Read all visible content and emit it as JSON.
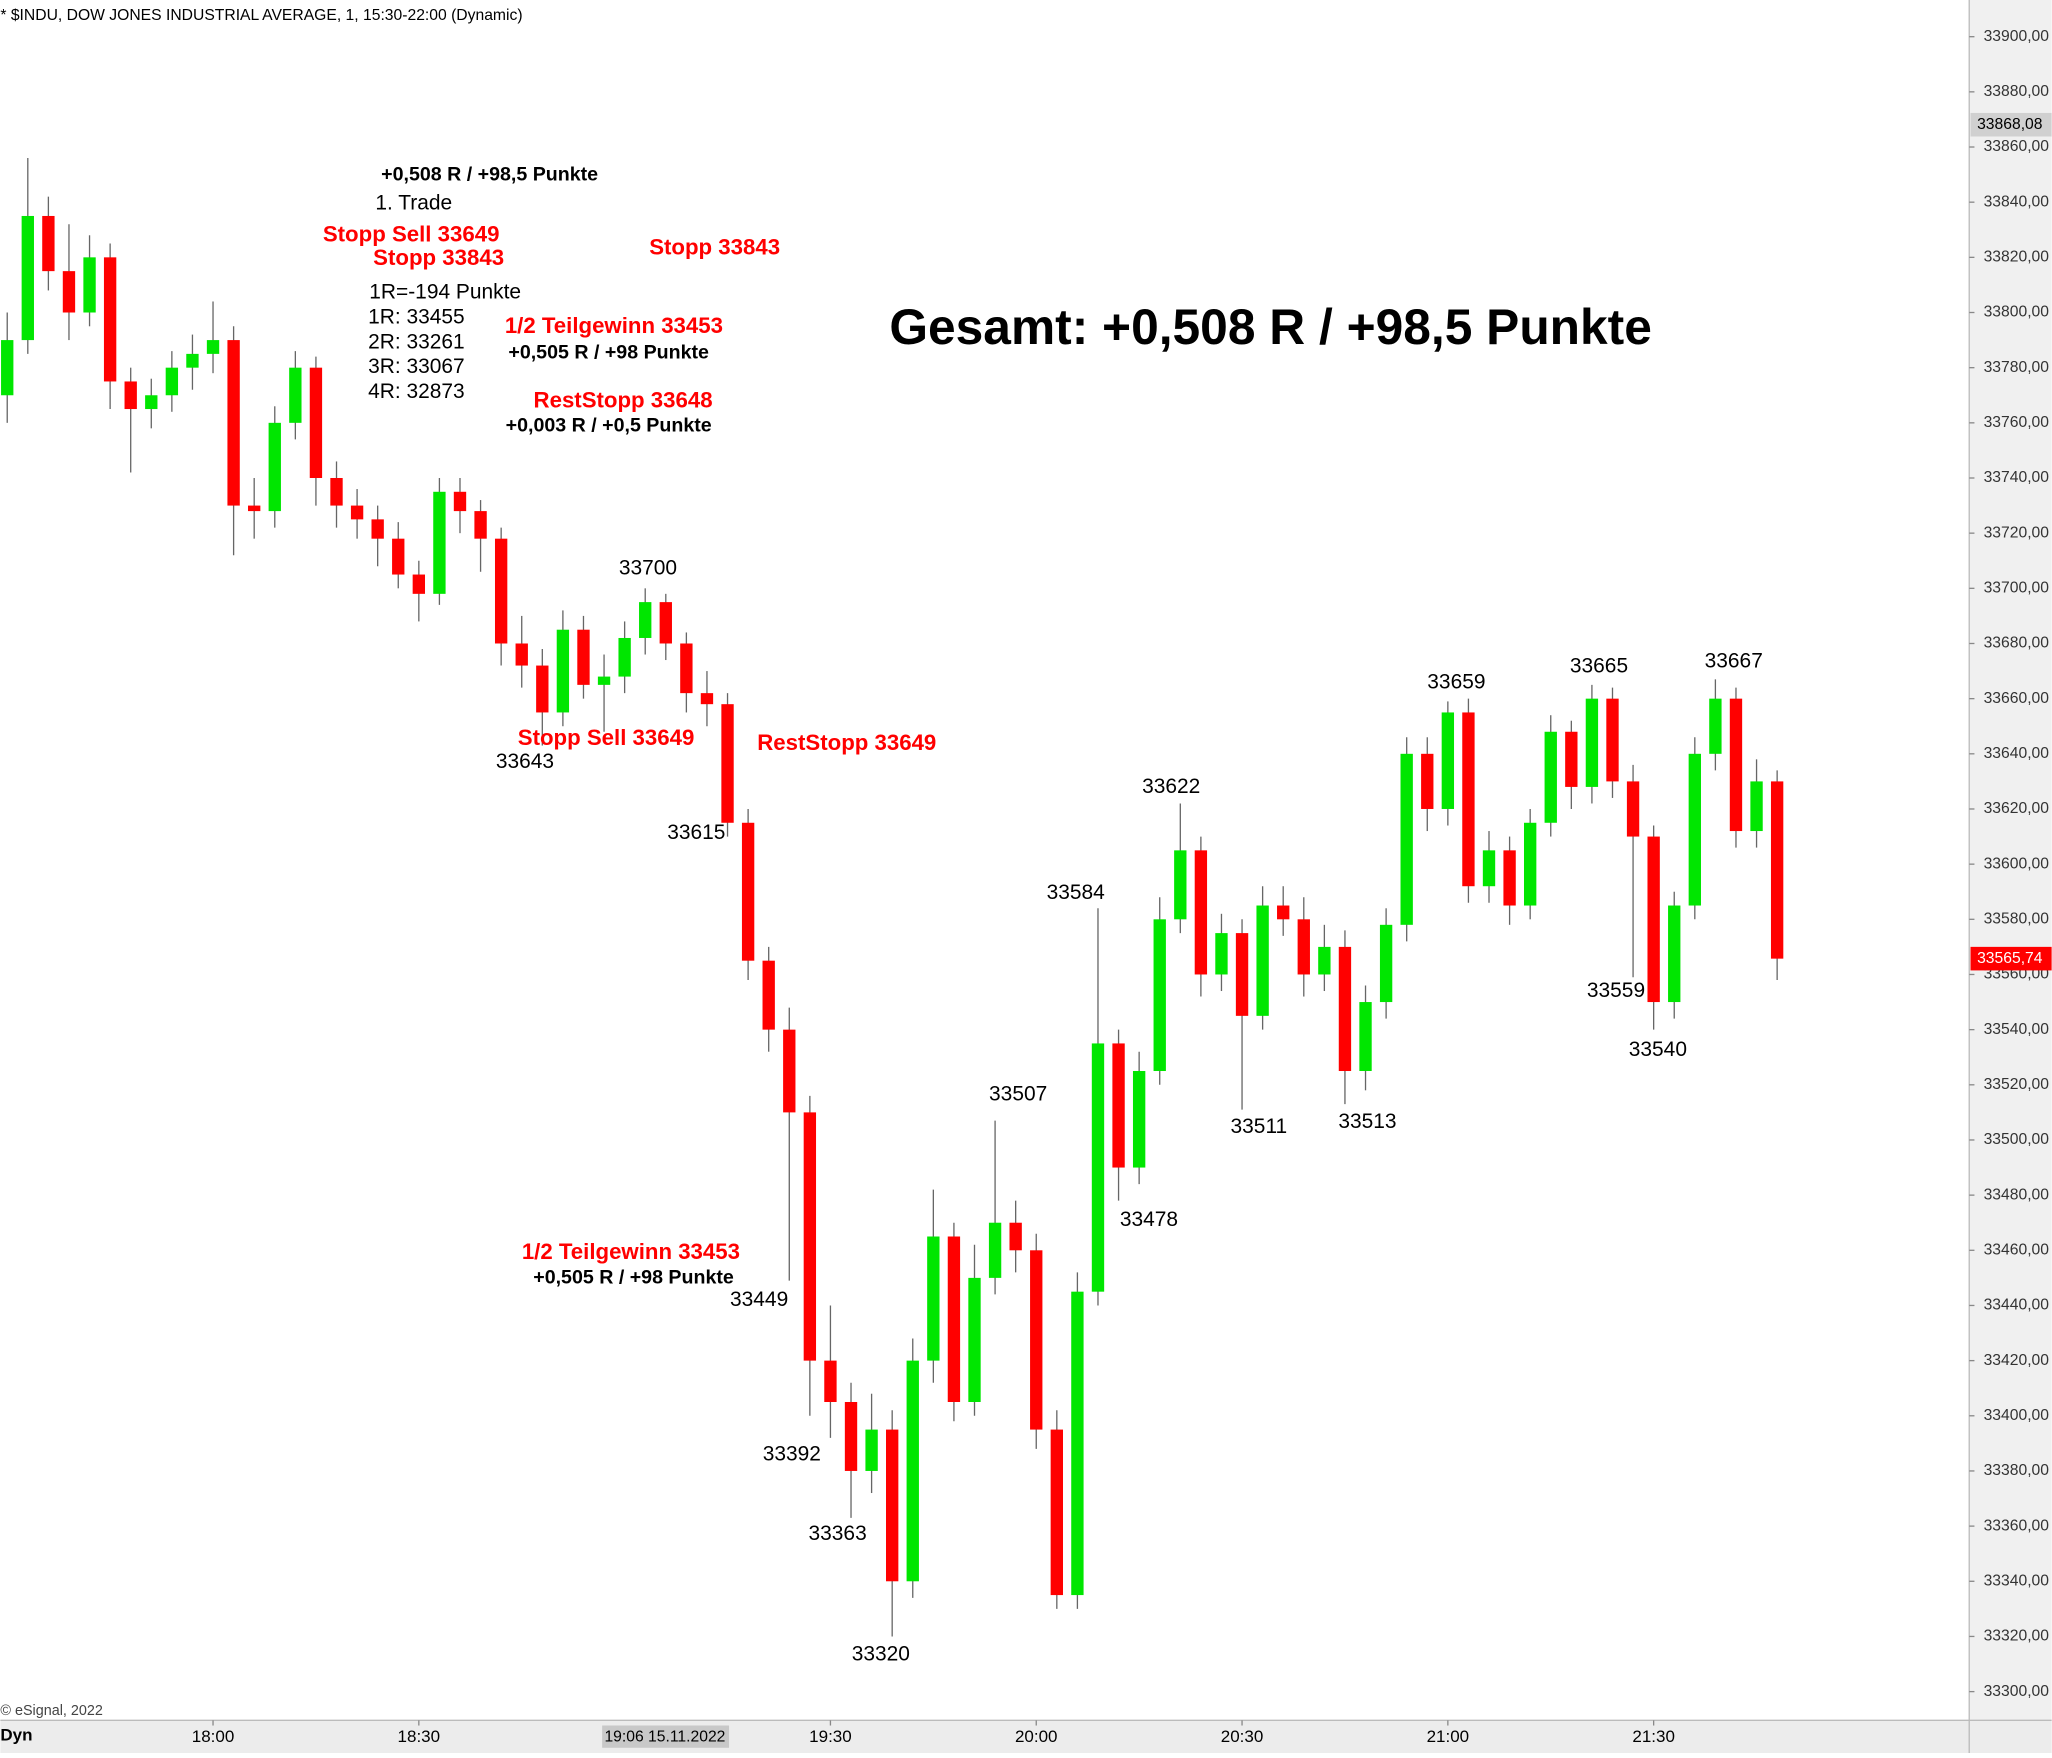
{
  "chart_data": {
    "type": "candlestick",
    "title": "* $INDU, DOW JONES INDUSTRIAL AVERAGE, 1, 15:30-22:00 (Dynamic)",
    "copyright": "© eSignal, 2022",
    "mode_label": "Dyn",
    "crosshair_time": "19:06 15.11.2022",
    "up_color": "#00e600",
    "down_color": "#ff0000",
    "x": [
      "17:30",
      "17:33",
      "17:36",
      "17:39",
      "17:42",
      "17:45",
      "17:48",
      "17:51",
      "17:54",
      "17:57",
      "18:00",
      "18:03",
      "18:06",
      "18:09",
      "18:12",
      "18:15",
      "18:18",
      "18:21",
      "18:24",
      "18:27",
      "18:30",
      "18:33",
      "18:36",
      "18:39",
      "18:42",
      "18:45",
      "18:48",
      "18:51",
      "18:54",
      "18:57",
      "19:00",
      "19:03",
      "19:06",
      "19:09",
      "19:12",
      "19:15",
      "19:18",
      "19:21",
      "19:24",
      "19:27",
      "19:30",
      "19:33",
      "19:36",
      "19:39",
      "19:42",
      "19:45",
      "19:48",
      "19:51",
      "19:54",
      "19:57",
      "20:00",
      "20:03",
      "20:06",
      "20:09",
      "20:12",
      "20:15",
      "20:18",
      "20:21",
      "20:24",
      "20:27",
      "20:30",
      "20:33",
      "20:36",
      "20:39",
      "20:42",
      "20:45",
      "20:48",
      "20:51",
      "20:54",
      "20:57",
      "21:00",
      "21:03",
      "21:06",
      "21:09",
      "21:12",
      "21:15",
      "21:18",
      "21:21",
      "21:24",
      "21:27",
      "21:30",
      "21:33",
      "21:36",
      "21:39",
      "21:42",
      "21:45",
      "21:48"
    ],
    "open": [
      33770,
      33790,
      33835,
      33815,
      33800,
      33820,
      33775,
      33765,
      33770,
      33780,
      33785,
      33790,
      33730,
      33728,
      33760,
      33780,
      33740,
      33730,
      33725,
      33718,
      33705,
      33698,
      33735,
      33728,
      33718,
      33680,
      33672,
      33655,
      33685,
      33665,
      33668,
      33682,
      33695,
      33680,
      33662,
      33658,
      33615,
      33565,
      33540,
      33510,
      33420,
      33405,
      33380,
      33395,
      33340,
      33420,
      33465,
      33405,
      33450,
      33470,
      33460,
      33395,
      33335,
      33445,
      33535,
      33490,
      33525,
      33580,
      33605,
      33560,
      33575,
      33545,
      33585,
      33580,
      33560,
      33570,
      33525,
      33550,
      33578,
      33640,
      33620,
      33655,
      33592,
      33605,
      33585,
      33615,
      33648,
      33628,
      33660,
      33630,
      33610,
      33550,
      33585,
      33640,
      33660,
      33612,
      33630
    ],
    "high": [
      33800,
      33856,
      33842,
      33832,
      33828,
      33825,
      33780,
      33776,
      33786,
      33792,
      33804,
      33795,
      33740,
      33766,
      33786,
      33784,
      33746,
      33736,
      33730,
      33724,
      33710,
      33740,
      33740,
      33732,
      33722,
      33690,
      33678,
      33692,
      33690,
      33676,
      33688,
      33700,
      33698,
      33684,
      33670,
      33662,
      33620,
      33570,
      33548,
      33516,
      33440,
      33412,
      33408,
      33402,
      33428,
      33482,
      33470,
      33462,
      33507,
      33478,
      33466,
      33402,
      33452,
      33584,
      33540,
      33532,
      33588,
      33622,
      33610,
      33582,
      33580,
      33592,
      33592,
      33588,
      33578,
      33576,
      33556,
      33584,
      33646,
      33646,
      33659,
      33660,
      33612,
      33610,
      33620,
      33654,
      33652,
      33665,
      33664,
      33636,
      33614,
      33590,
      33646,
      33667,
      33664,
      33638,
      33634
    ],
    "low": [
      33760,
      33785,
      33808,
      33790,
      33795,
      33765,
      33742,
      33758,
      33764,
      33772,
      33778,
      33712,
      33718,
      33722,
      33754,
      33730,
      33722,
      33718,
      33708,
      33700,
      33688,
      33694,
      33720,
      33706,
      33672,
      33664,
      33643,
      33650,
      33660,
      33648,
      33662,
      33676,
      33674,
      33655,
      33650,
      33610,
      33558,
      33532,
      33449,
      33400,
      33392,
      33363,
      33372,
      33320,
      33334,
      33412,
      33398,
      33400,
      33444,
      33452,
      33388,
      33330,
      33330,
      33440,
      33478,
      33484,
      33520,
      33575,
      33552,
      33554,
      33511,
      33540,
      33574,
      33552,
      33554,
      33513,
      33518,
      33544,
      33572,
      33612,
      33614,
      33586,
      33586,
      33578,
      33580,
      33610,
      33620,
      33622,
      33624,
      33559,
      33540,
      33544,
      33580,
      33634,
      33606,
      33606,
      33558
    ],
    "close": [
      33790,
      33835,
      33815,
      33800,
      33820,
      33775,
      33765,
      33770,
      33780,
      33785,
      33790,
      33730,
      33728,
      33760,
      33780,
      33740,
      33730,
      33725,
      33718,
      33705,
      33698,
      33735,
      33728,
      33718,
      33680,
      33672,
      33655,
      33685,
      33665,
      33668,
      33682,
      33695,
      33680,
      33662,
      33658,
      33615,
      33565,
      33540,
      33510,
      33420,
      33405,
      33380,
      33395,
      33340,
      33420,
      33465,
      33405,
      33450,
      33470,
      33460,
      33395,
      33335,
      33445,
      33535,
      33490,
      33525,
      33580,
      33605,
      33560,
      33575,
      33545,
      33585,
      33580,
      33560,
      33570,
      33525,
      33550,
      33578,
      33640,
      33620,
      33655,
      33592,
      33605,
      33585,
      33615,
      33648,
      33628,
      33660,
      33630,
      33610,
      33550,
      33585,
      33640,
      33660,
      33612,
      33630,
      33565.74
    ],
    "xlim": [
      "17:29",
      "22:16"
    ],
    "xticks": [
      "18:00",
      "18:30",
      "19:30",
      "20:00",
      "20:30",
      "21:00",
      "21:30"
    ],
    "ylim": [
      33289.6,
      33913.3
    ],
    "yticks": [
      {
        "value": 33300,
        "label": "33300,00"
      },
      {
        "value": 33320,
        "label": "33320,00"
      },
      {
        "value": 33340,
        "label": "33340,00"
      },
      {
        "value": 33360,
        "label": "33360,00"
      },
      {
        "value": 33380,
        "label": "33380,00"
      },
      {
        "value": 33400,
        "label": "33400,00"
      },
      {
        "value": 33420,
        "label": "33420,00"
      },
      {
        "value": 33440,
        "label": "33440,00"
      },
      {
        "value": 33460,
        "label": "33460,00"
      },
      {
        "value": 33480,
        "label": "33480,00"
      },
      {
        "value": 33500,
        "label": "33500,00"
      },
      {
        "value": 33520,
        "label": "33520,00"
      },
      {
        "value": 33540,
        "label": "33540,00"
      },
      {
        "value": 33560,
        "label": "33560,00"
      },
      {
        "value": 33580,
        "label": "33580,00"
      },
      {
        "value": 33600,
        "label": "33600,00"
      },
      {
        "value": 33620,
        "label": "33620,00"
      },
      {
        "value": 33640,
        "label": "33640,00"
      },
      {
        "value": 33660,
        "label": "33660,00"
      },
      {
        "value": 33680,
        "label": "33680,00"
      },
      {
        "value": 33700,
        "label": "33700,00"
      },
      {
        "value": 33720,
        "label": "33720,00"
      },
      {
        "value": 33740,
        "label": "33740,00"
      },
      {
        "value": 33760,
        "label": "33760,00"
      },
      {
        "value": 33780,
        "label": "33780,00"
      },
      {
        "value": 33800,
        "label": "33800,00"
      },
      {
        "value": 33820,
        "label": "33820,00"
      },
      {
        "value": 33840,
        "label": "33840,00"
      },
      {
        "value": 33860,
        "label": "33860,00"
      },
      {
        "value": 33880,
        "label": "33880,00"
      },
      {
        "value": 33900,
        "label": "33900,00"
      }
    ],
    "price_markers": [
      {
        "value": 33868.08,
        "label": "33868,08",
        "color": "#d0d0d0"
      },
      {
        "value": 33565.74,
        "label": "33565,74",
        "color": "#ff0000"
      }
    ],
    "annotations": [
      {
        "text": "+0,508 R / +98,5 Punkte",
        "color": "#000000",
        "bold": true
      },
      {
        "text": "1. Trade",
        "color": "#000000",
        "bold": false
      },
      {
        "text": "Stopp Sell 33649",
        "color": "#ff0000",
        "bold": true
      },
      {
        "text": "Stopp 33843",
        "color": "#ff0000",
        "bold": true
      },
      {
        "text": "Stopp 33843",
        "color": "#ff0000",
        "bold": true
      },
      {
        "text": "1R=-194 Punkte",
        "color": "#000000",
        "bold": false
      },
      {
        "text": "1R: 33455",
        "color": "#000000",
        "bold": false
      },
      {
        "text": "2R: 33261",
        "color": "#000000",
        "bold": false
      },
      {
        "text": "3R: 33067",
        "color": "#000000",
        "bold": false
      },
      {
        "text": "4R: 32873",
        "color": "#000000",
        "bold": false
      },
      {
        "text": "1/2 Teilgewinn 33453",
        "color": "#ff0000",
        "bold": true
      },
      {
        "text": "+0,505 R / +98 Punkte",
        "color": "#000000",
        "bold": true
      },
      {
        "text": "RestStopp 33648",
        "color": "#ff0000",
        "bold": true
      },
      {
        "text": "+0,003 R / +0,5 Punkte",
        "color": "#000000",
        "bold": true
      },
      {
        "text": "Gesamt: +0,508 R / +98,5 Punkte",
        "color": "#000000",
        "bold": true
      },
      {
        "text": "Stopp Sell 33649",
        "color": "#ff0000",
        "bold": true
      },
      {
        "text": "RestStopp 33649",
        "color": "#ff0000",
        "bold": true
      },
      {
        "text": "1/2 Teilgewinn 33453",
        "color": "#ff0000",
        "bold": true
      },
      {
        "text": "+0,505 R / +98 Punkte",
        "color": "#000000",
        "bold": true
      },
      {
        "text": "33700",
        "color": "#000000",
        "bold": false
      },
      {
        "text": "33643",
        "color": "#000000",
        "bold": false
      },
      {
        "text": "33615",
        "color": "#000000",
        "bold": false
      },
      {
        "text": "33449",
        "color": "#000000",
        "bold": false
      },
      {
        "text": "33392",
        "color": "#000000",
        "bold": false
      },
      {
        "text": "33363",
        "color": "#000000",
        "bold": false
      },
      {
        "text": "33320",
        "color": "#000000",
        "bold": false
      },
      {
        "text": "33507",
        "color": "#000000",
        "bold": false
      },
      {
        "text": "33584",
        "color": "#000000",
        "bold": false
      },
      {
        "text": "33478",
        "color": "#000000",
        "bold": false
      },
      {
        "text": "33622",
        "color": "#000000",
        "bold": false
      },
      {
        "text": "33511",
        "color": "#000000",
        "bold": false
      },
      {
        "text": "33513",
        "color": "#000000",
        "bold": false
      },
      {
        "text": "33659",
        "color": "#000000",
        "bold": false
      },
      {
        "text": "33665",
        "color": "#000000",
        "bold": false
      },
      {
        "text": "33667",
        "color": "#000000",
        "bold": false
      },
      {
        "text": "33559",
        "color": "#000000",
        "bold": false
      },
      {
        "text": "33540",
        "color": "#000000",
        "bold": false
      }
    ]
  }
}
